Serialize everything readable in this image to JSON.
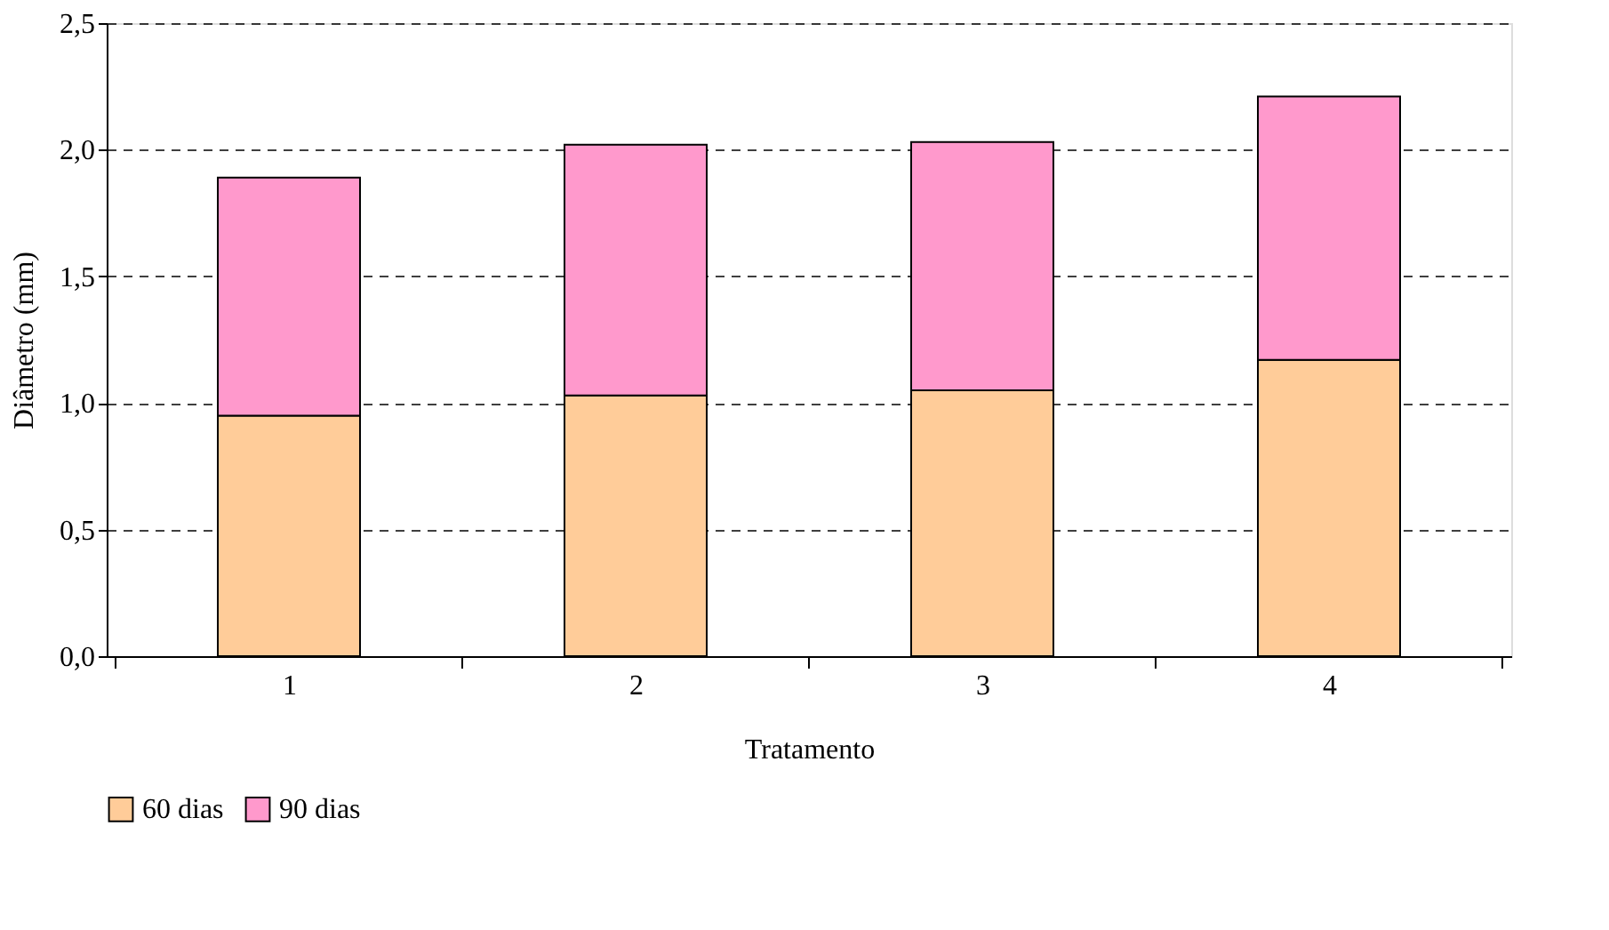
{
  "chart_data": {
    "type": "bar",
    "stacked": true,
    "xlabel": "Tratamento",
    "ylabel": "Diâmetro (mm)",
    "categories": [
      "1",
      "2",
      "3",
      "4"
    ],
    "series": [
      {
        "name": "60 dias",
        "color": "#ffcc99",
        "values": [
          0.95,
          1.03,
          1.05,
          1.17
        ]
      },
      {
        "name": "90 dias",
        "color": "#ff99cc",
        "values": [
          0.94,
          0.99,
          0.98,
          1.04
        ]
      }
    ],
    "ylim": [
      0,
      2.5
    ],
    "yticks": [
      {
        "value": 0,
        "label": "0,0"
      },
      {
        "value": 0.5,
        "label": "0,5"
      },
      {
        "value": 1,
        "label": "1,0"
      },
      {
        "value": 1.5,
        "label": "1,5"
      },
      {
        "value": 2,
        "label": "2,0"
      },
      {
        "value": 2.5,
        "label": "2,5"
      }
    ],
    "grid": "y",
    "legend": "bottom"
  }
}
